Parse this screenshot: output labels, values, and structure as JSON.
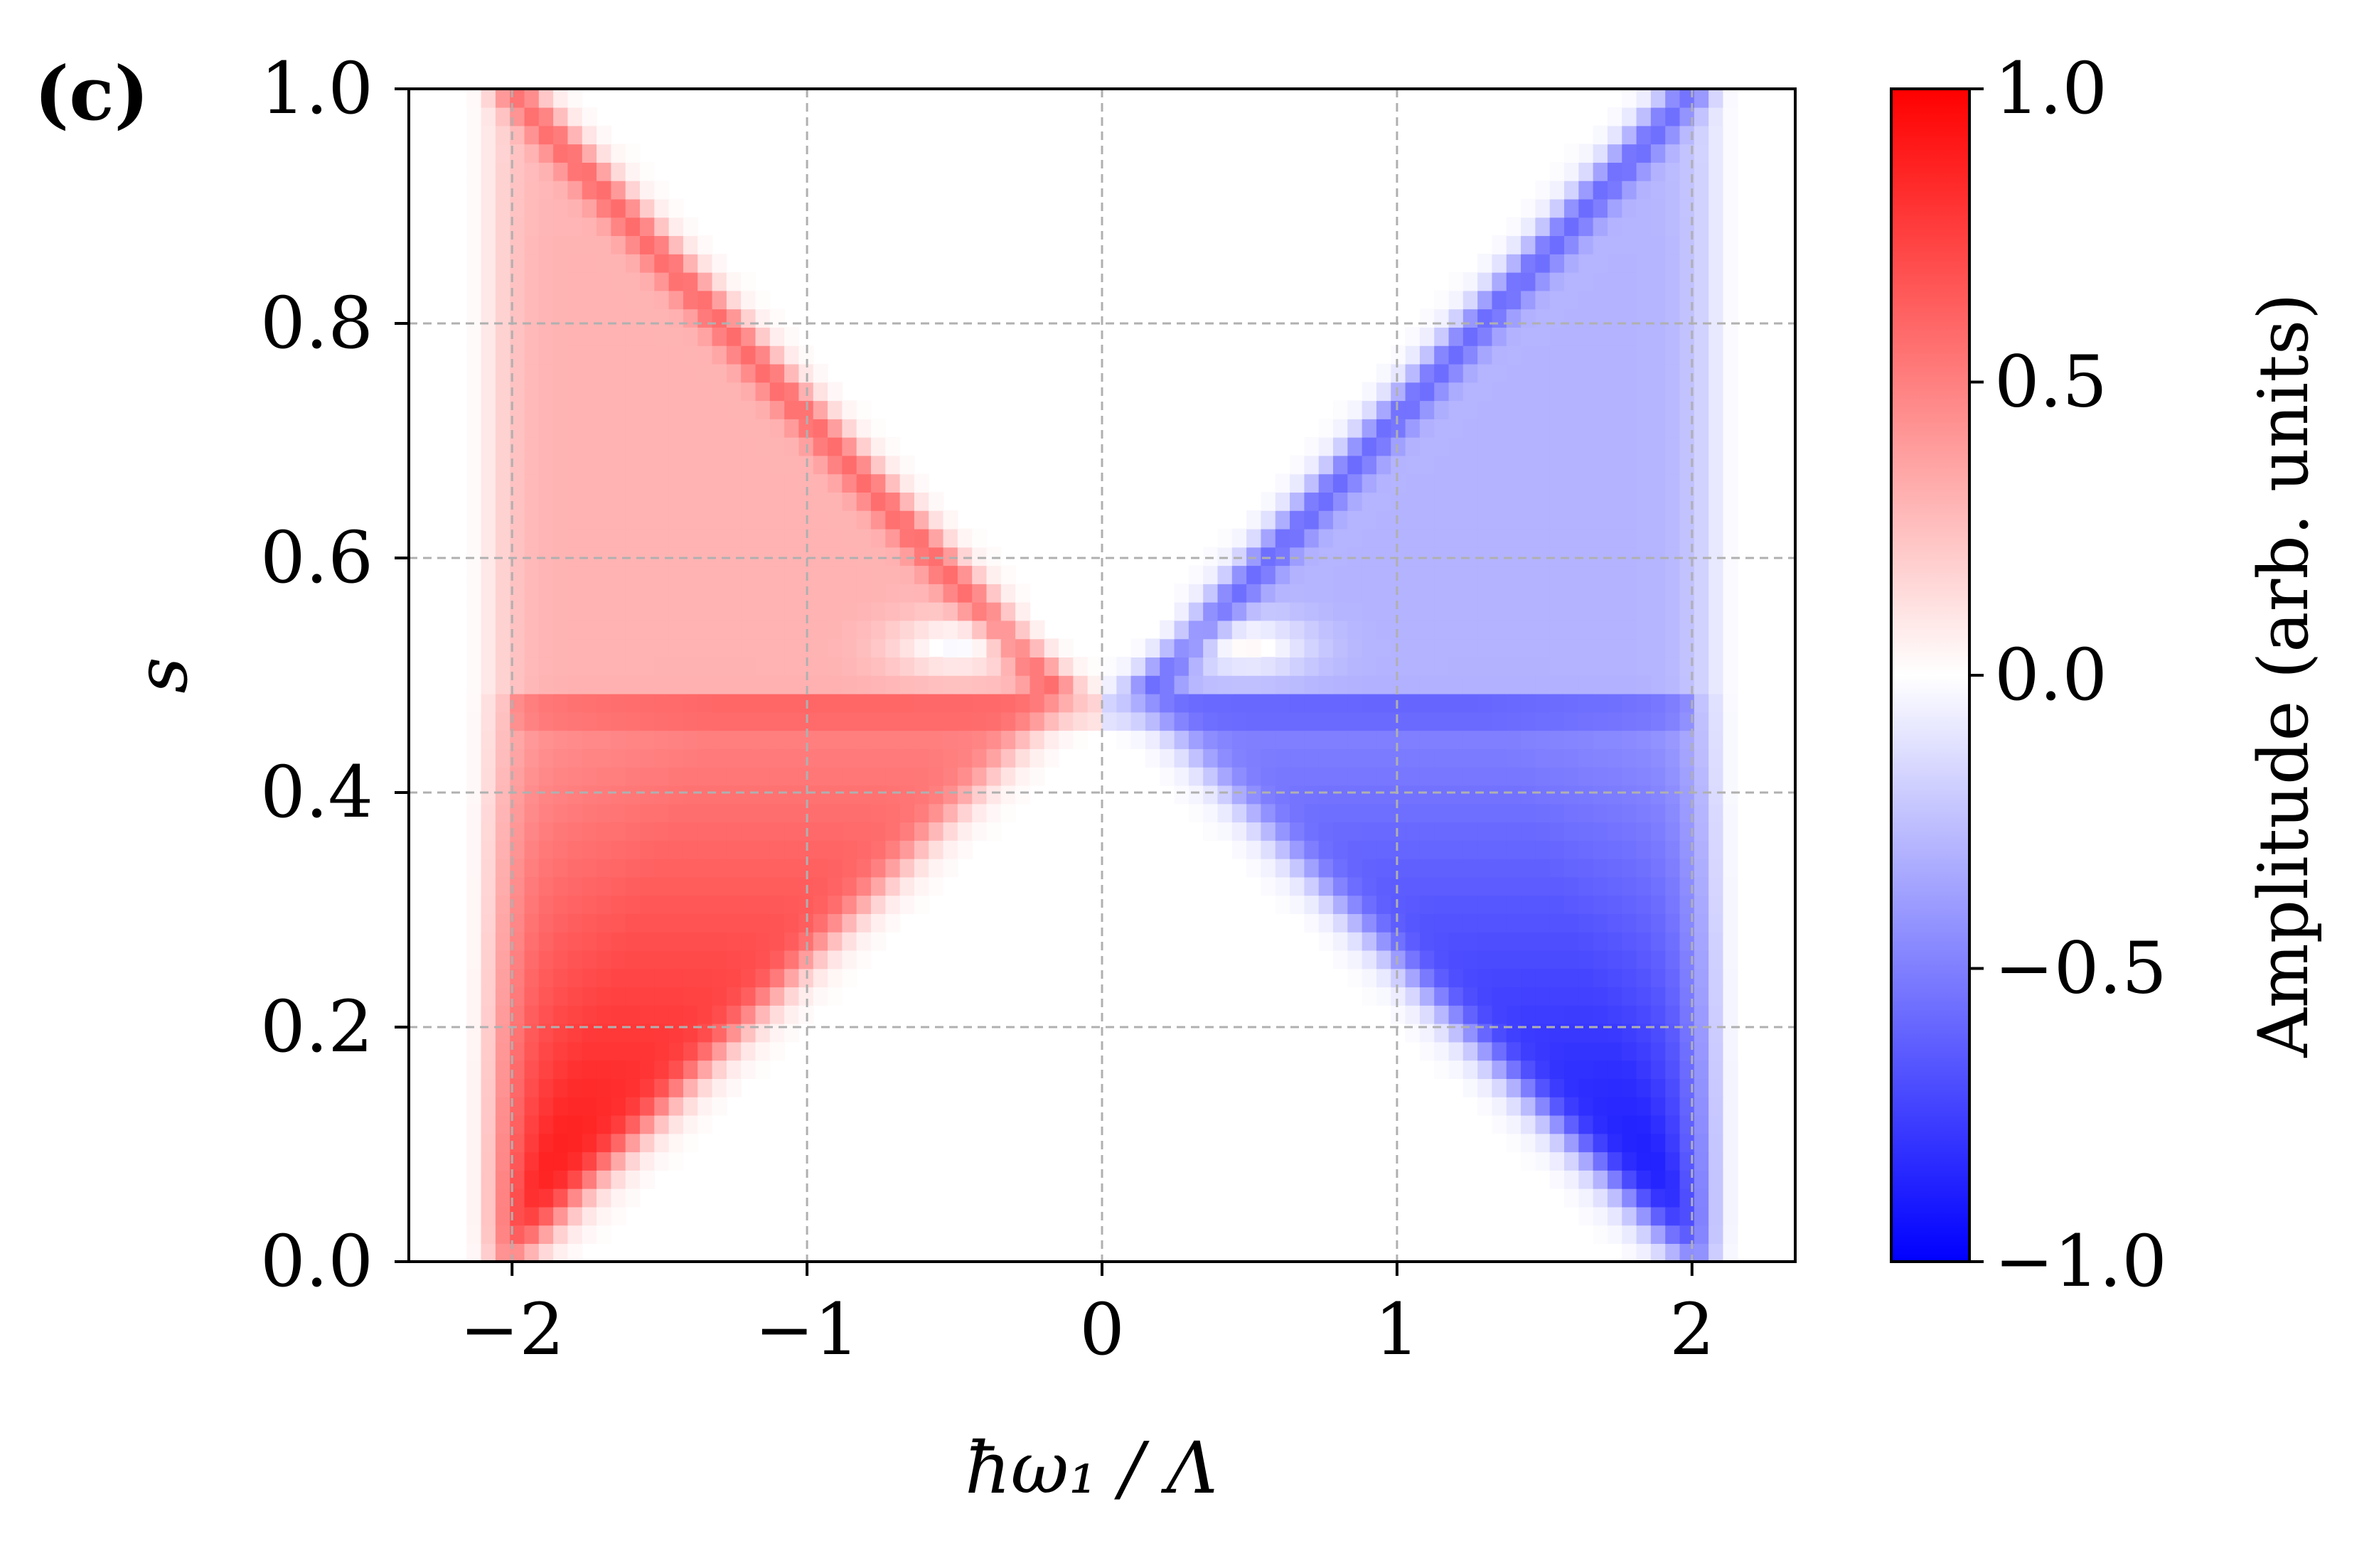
{
  "figure": {
    "panel_label": "(c)"
  },
  "chart_data": {
    "type": "heatmap",
    "title": "",
    "xlabel": "ħω₁ / Λ",
    "ylabel": "s",
    "xlim": [
      -2.35,
      2.35
    ],
    "ylim": [
      0.0,
      1.0
    ],
    "x_ticks": [
      -2,
      -1,
      0,
      1,
      2
    ],
    "x_tick_labels": [
      "−2",
      "−1",
      "0",
      "1",
      "2"
    ],
    "y_ticks": [
      0.0,
      0.2,
      0.4,
      0.6,
      0.8,
      1.0
    ],
    "y_tick_labels": [
      "0.0",
      "0.2",
      "0.4",
      "0.6",
      "0.8",
      "1.0"
    ],
    "grid": true,
    "colormap": "bwr",
    "colors": {
      "positive": "#ff0000",
      "zero": "#ffffff",
      "negative": "#0000ff",
      "grid": "#b0b0b0"
    },
    "colorbar": {
      "label": "Amplitude (arb. units)",
      "range": [
        -1.0,
        1.0
      ],
      "ticks": [
        1.0,
        0.5,
        0.0,
        -0.5,
        -1.0
      ],
      "tick_labels": [
        "1.0",
        "0.5",
        "0.0",
        "−0.5",
        "−1.0"
      ]
    },
    "features": [
      {
        "name": "lower-left lobe",
        "sign": "+",
        "x_range": [
          -2.1,
          -0.1
        ],
        "y_range": [
          0.0,
          0.48
        ],
        "peak": 1.0
      },
      {
        "name": "lower-right lobe",
        "sign": "-",
        "x_range": [
          0.1,
          2.1
        ],
        "y_range": [
          0.0,
          0.48
        ],
        "peak": -1.0
      },
      {
        "name": "upper-left diagonal band",
        "from": [
          -2.0,
          1.0
        ],
        "to": [
          -0.2,
          0.5
        ],
        "sign": "+",
        "peak": 0.65
      },
      {
        "name": "upper-right diagonal band",
        "from": [
          2.0,
          1.0
        ],
        "to": [
          0.2,
          0.5
        ],
        "sign": "-",
        "peak": -0.65
      },
      {
        "name": "horizontal line",
        "y": 0.47,
        "x_range": [
          -2.0,
          2.0
        ]
      },
      {
        "name": "inner lobe left",
        "center": [
          -0.5,
          0.52
        ],
        "sign": "-",
        "peak": -0.3
      },
      {
        "name": "inner lobe right",
        "center": [
          0.5,
          0.52
        ],
        "sign": "+",
        "peak": 0.3
      }
    ]
  }
}
